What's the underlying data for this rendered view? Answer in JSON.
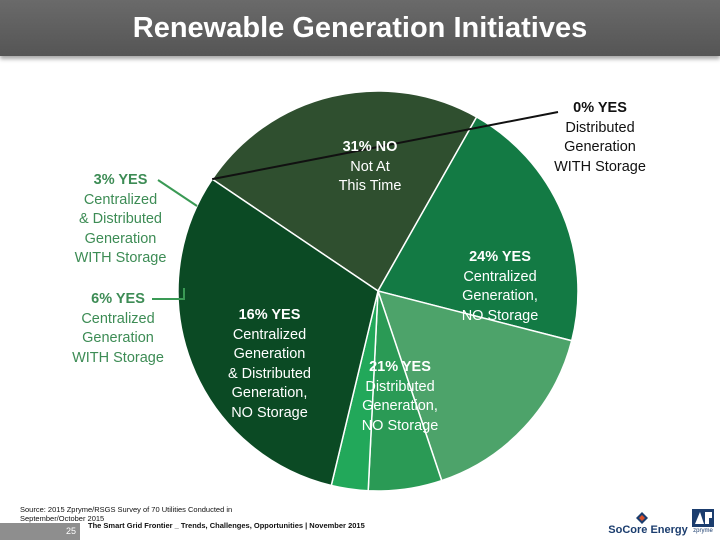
{
  "slide": {
    "title": "Renewable Generation Initiatives",
    "source": "Source: 2015 Zpryme/RSGS Survey of 70 Utilities Conducted in September/October 2015",
    "page_number": "25",
    "footer": "The Smart Grid Frontier _ Trends, Challenges, Opportunities | November 2015",
    "logos": {
      "socore": "SoCore Energy",
      "zpryme": "zpryme"
    }
  },
  "chart_data": {
    "type": "pie",
    "title": "",
    "slices": [
      {
        "pct": "24% YES",
        "value": 24,
        "lines": [
          "Centralized",
          "Generation,",
          "NO Storage"
        ],
        "color": "#2f4f2f"
      },
      {
        "pct": "21% YES",
        "value": 21,
        "lines": [
          "Distributed",
          "Generation,",
          "NO Storage"
        ],
        "color": "#137a44"
      },
      {
        "pct": "16% YES",
        "value": 16,
        "lines": [
          "Centralized",
          "Generation",
          "& Distributed",
          "Generation,",
          "NO Storage"
        ],
        "color": "#4da36a"
      },
      {
        "pct": "6% YES",
        "value": 6,
        "lines": [
          "Centralized",
          "Generation",
          "WITH Storage"
        ],
        "color": "#2a9a55"
      },
      {
        "pct": "3% YES",
        "value": 3,
        "lines": [
          "Centralized",
          "& Distributed",
          "Generation",
          "WITH Storage"
        ],
        "color": "#22a85a"
      },
      {
        "pct": "31% NO",
        "value": 31,
        "lines": [
          "Not At",
          "This Time"
        ],
        "color": "#0b4a24"
      },
      {
        "pct": "0% YES",
        "value": 0,
        "lines": [
          "Distributed",
          "Generation",
          "WITH Storage"
        ],
        "color": "#0b4a24"
      }
    ],
    "colors": {
      "label_green": "#3d8c55",
      "leader_line_green": "#3a9a55"
    }
  }
}
